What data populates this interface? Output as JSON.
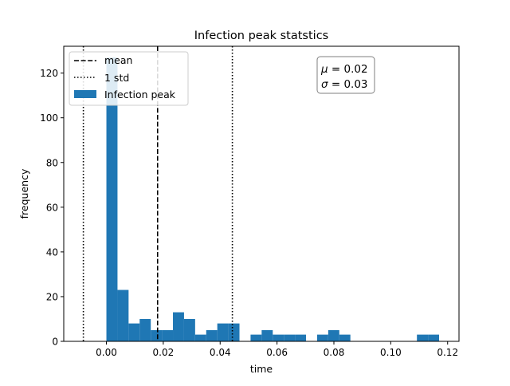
{
  "chart_data": {
    "type": "bar",
    "title": "Infection peak statstics",
    "xlabel": "time",
    "ylabel": "frequency",
    "xlim": [
      -0.015,
      0.124
    ],
    "ylim": [
      0,
      132
    ],
    "grid": false,
    "legend_position": "top-left",
    "x_ticks": [
      0.0,
      0.02,
      0.04,
      0.06,
      0.08,
      0.1,
      0.12
    ],
    "x_tick_labels": [
      "0.00",
      "0.02",
      "0.04",
      "0.06",
      "0.08",
      "0.10",
      "0.12"
    ],
    "y_ticks": [
      0,
      20,
      40,
      60,
      80,
      100,
      120
    ],
    "y_tick_labels": [
      "0",
      "20",
      "40",
      "60",
      "80",
      "100",
      "120"
    ],
    "bin_width": 0.0039,
    "bins": [
      {
        "x": 0.0,
        "count": 127
      },
      {
        "x": 0.0039,
        "count": 23
      },
      {
        "x": 0.0078,
        "count": 8
      },
      {
        "x": 0.0117,
        "count": 10
      },
      {
        "x": 0.0156,
        "count": 5
      },
      {
        "x": 0.0195,
        "count": 5
      },
      {
        "x": 0.0234,
        "count": 13
      },
      {
        "x": 0.0273,
        "count": 10
      },
      {
        "x": 0.0312,
        "count": 3
      },
      {
        "x": 0.0351,
        "count": 5
      },
      {
        "x": 0.039,
        "count": 8
      },
      {
        "x": 0.0429,
        "count": 8
      },
      {
        "x": 0.0468,
        "count": 0
      },
      {
        "x": 0.0507,
        "count": 3
      },
      {
        "x": 0.0546,
        "count": 5
      },
      {
        "x": 0.0585,
        "count": 3
      },
      {
        "x": 0.0624,
        "count": 3
      },
      {
        "x": 0.0663,
        "count": 3
      },
      {
        "x": 0.0702,
        "count": 0
      },
      {
        "x": 0.0741,
        "count": 3
      },
      {
        "x": 0.078,
        "count": 5
      },
      {
        "x": 0.0819,
        "count": 3
      },
      {
        "x": 0.0858,
        "count": 0
      },
      {
        "x": 0.0897,
        "count": 0
      },
      {
        "x": 0.0936,
        "count": 0
      },
      {
        "x": 0.0975,
        "count": 0
      },
      {
        "x": 0.1014,
        "count": 0
      },
      {
        "x": 0.1053,
        "count": 0
      },
      {
        "x": 0.1092,
        "count": 3
      },
      {
        "x": 0.1131,
        "count": 3
      }
    ],
    "mean_line": {
      "x": 0.018
    },
    "std_lines": [
      {
        "x": -0.0081
      },
      {
        "x": 0.0443
      }
    ],
    "bar_color": "#1f77b4",
    "line_color": "#000000",
    "legend": [
      {
        "label": "mean",
        "style": "dashed"
      },
      {
        "label": "1 std",
        "style": "dotted"
      },
      {
        "label": "Infection peak",
        "style": "patch"
      }
    ],
    "stats_box": {
      "mu_symbol": "μ",
      "mu_value": "= 0.02",
      "sigma_symbol": "σ",
      "sigma_value": "= 0.03",
      "position": "top-right"
    }
  }
}
